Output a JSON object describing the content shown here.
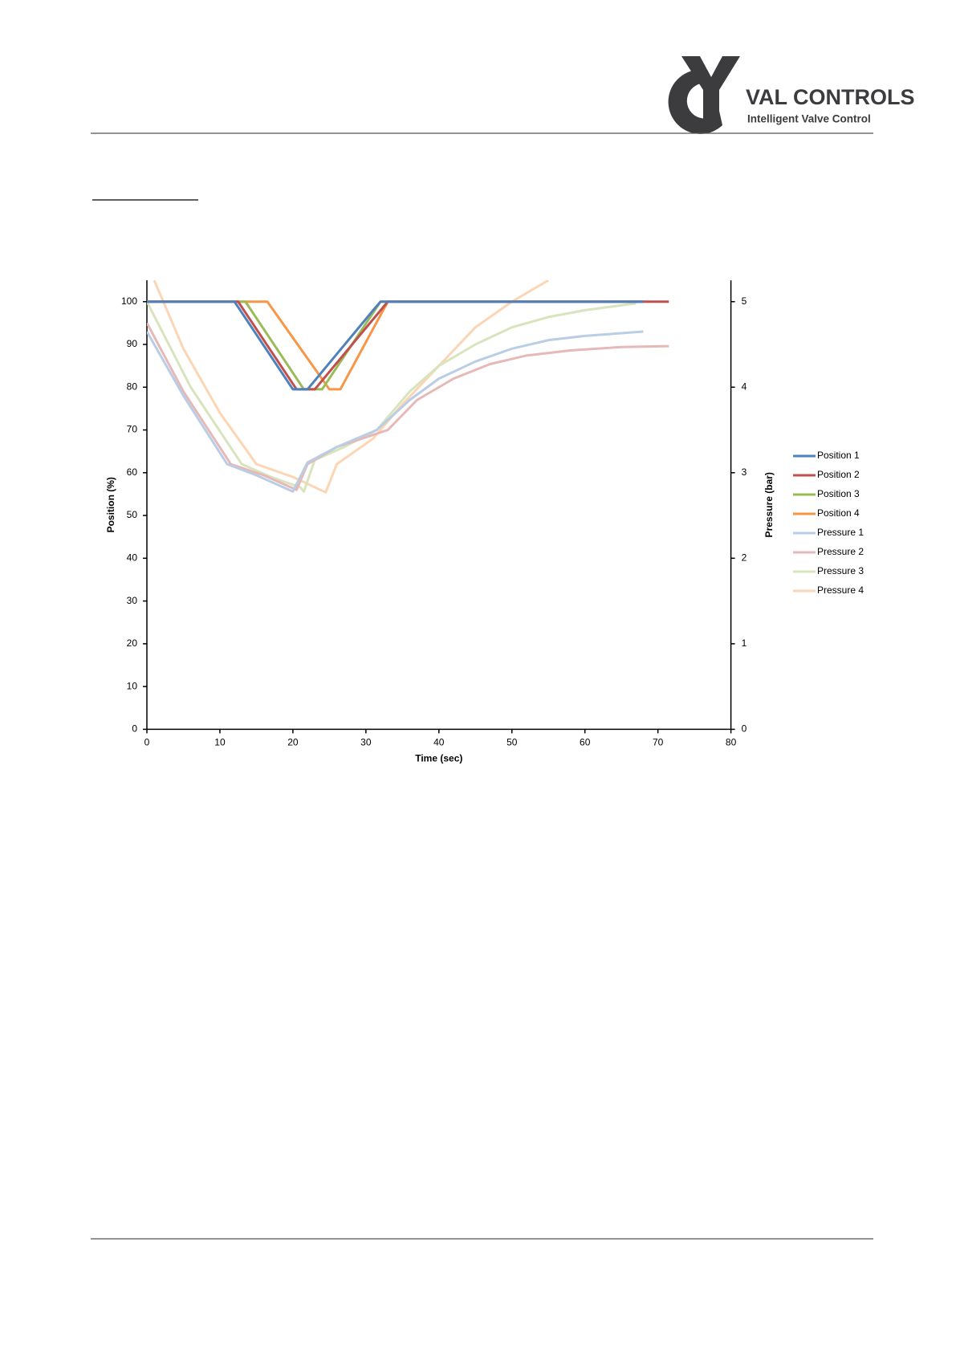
{
  "header": {
    "logo": "VAL CONTROLS",
    "tagline": "Intelligent Valve Control"
  },
  "chart_data": {
    "type": "line",
    "x_label": "Time (sec)",
    "y_label": "Position (%)",
    "y2_label": "Pressure (bar)",
    "xlim": [
      0,
      80
    ],
    "xticks": [
      0,
      10,
      20,
      30,
      40,
      50,
      60,
      70,
      80
    ],
    "ylim": [
      0,
      105
    ],
    "yticks": [
      0,
      10,
      20,
      30,
      40,
      50,
      60,
      70,
      80,
      90,
      100
    ],
    "y2lim": [
      0,
      5.25
    ],
    "y2ticks": [
      0,
      1,
      2,
      3,
      4,
      5
    ],
    "legend": "right",
    "series": [
      {
        "name": "Position 1",
        "color": "#4f81bd",
        "x": [
          0,
          12,
          20,
          22,
          31,
          32,
          68
        ],
        "values": [
          100,
          100,
          79.5,
          79.5,
          98,
          100,
          100
        ]
      },
      {
        "name": "Position 2",
        "color": "#c0504d",
        "x": [
          0,
          12.5,
          20.5,
          23,
          33,
          71.5
        ],
        "values": [
          100,
          100,
          79.5,
          79.5,
          100,
          100
        ]
      },
      {
        "name": "Position 3",
        "color": "#9bbb59",
        "x": [
          0,
          13.5,
          21.5,
          24,
          32,
          68
        ],
        "values": [
          100,
          100,
          79.5,
          79.5,
          100,
          100
        ]
      },
      {
        "name": "Position 4",
        "color": "#f79646",
        "x": [
          0,
          16.5,
          25,
          26.5,
          33,
          67.5
        ],
        "values": [
          100,
          100,
          79.5,
          79.5,
          100,
          100
        ]
      },
      {
        "name": "Pressure 1",
        "color": "#b9cde5",
        "axis": "y2",
        "x": [
          0,
          5,
          11,
          15,
          20,
          21,
          22,
          26,
          31.5,
          36,
          40,
          45,
          50,
          55,
          60,
          68
        ],
        "values": [
          4.65,
          3.9,
          3.1,
          2.97,
          2.78,
          2.95,
          3.12,
          3.3,
          3.5,
          3.85,
          4.1,
          4.3,
          4.45,
          4.55,
          4.6,
          4.65
        ]
      },
      {
        "name": "Pressure 2",
        "color": "#e6b9b8",
        "axis": "y2",
        "x": [
          0,
          5,
          11.5,
          16,
          20.5,
          22,
          26,
          33,
          37,
          42,
          47,
          52,
          58,
          65,
          71.5
        ],
        "values": [
          4.75,
          3.95,
          3.1,
          2.97,
          2.8,
          3.1,
          3.3,
          3.5,
          3.85,
          4.1,
          4.27,
          4.37,
          4.43,
          4.47,
          4.48
        ]
      },
      {
        "name": "Pressure 3",
        "color": "#d7e4bd",
        "axis": "y2",
        "x": [
          0,
          6,
          13,
          17,
          21,
          21.5,
          23,
          27,
          31.5,
          36,
          40,
          45,
          50,
          55,
          60,
          67
        ],
        "values": [
          5.0,
          4.0,
          3.1,
          2.95,
          2.83,
          2.78,
          3.15,
          3.3,
          3.5,
          3.95,
          4.25,
          4.5,
          4.7,
          4.82,
          4.9,
          4.98
        ]
      },
      {
        "name": "Pressure 4",
        "color": "#fcd5b4",
        "axis": "y2",
        "x": [
          1,
          5,
          10,
          15,
          20,
          24.5,
          26,
          31,
          35,
          40,
          45,
          50,
          55
        ],
        "values": [
          5.25,
          4.45,
          3.7,
          3.1,
          2.95,
          2.77,
          3.1,
          3.4,
          3.8,
          4.25,
          4.7,
          5.0,
          5.25
        ]
      }
    ]
  }
}
